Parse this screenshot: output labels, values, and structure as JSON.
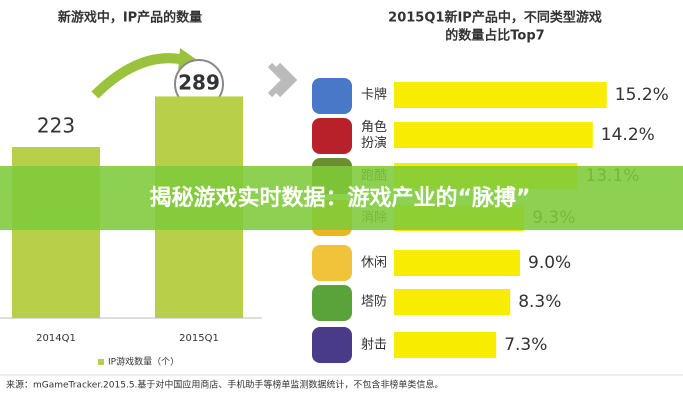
{
  "chart_data": [
    {
      "type": "bar",
      "title": "新游戏中，IP产品的数量",
      "categories": [
        "2014Q1",
        "2015Q1"
      ],
      "series": [
        {
          "name": "IP游戏数量（个）",
          "color": "#b7cf49",
          "values": [
            223,
            289
          ]
        }
      ],
      "ylim": [
        0,
        300
      ]
    },
    {
      "type": "hbar",
      "title": [
        "2015Q1新IP产品中，不同类型游戏",
        "的数量占比Top7"
      ],
      "categories": [
        "卡牌",
        "角色扮演",
        "跑酷",
        "消除",
        "休闲",
        "塔防",
        "射击"
      ],
      "values": [
        15.2,
        14.2,
        13.1,
        9.3,
        9.0,
        8.3,
        7.3
      ],
      "value_labels": [
        "15.2%",
        "14.2%",
        "13.1%",
        "9.3%",
        "9.0%",
        "8.3%",
        "7.3%"
      ],
      "color": "#f8ec00",
      "xlim": [
        0,
        20
      ]
    }
  ],
  "banner": "揭秘游戏实时数据：游戏产业的“脉搏”",
  "source": "来源：mGameTracker.2015.5.基于对中国应用商店、手机助手等榜单监测数据统计，不包含非榜单类信息。"
}
